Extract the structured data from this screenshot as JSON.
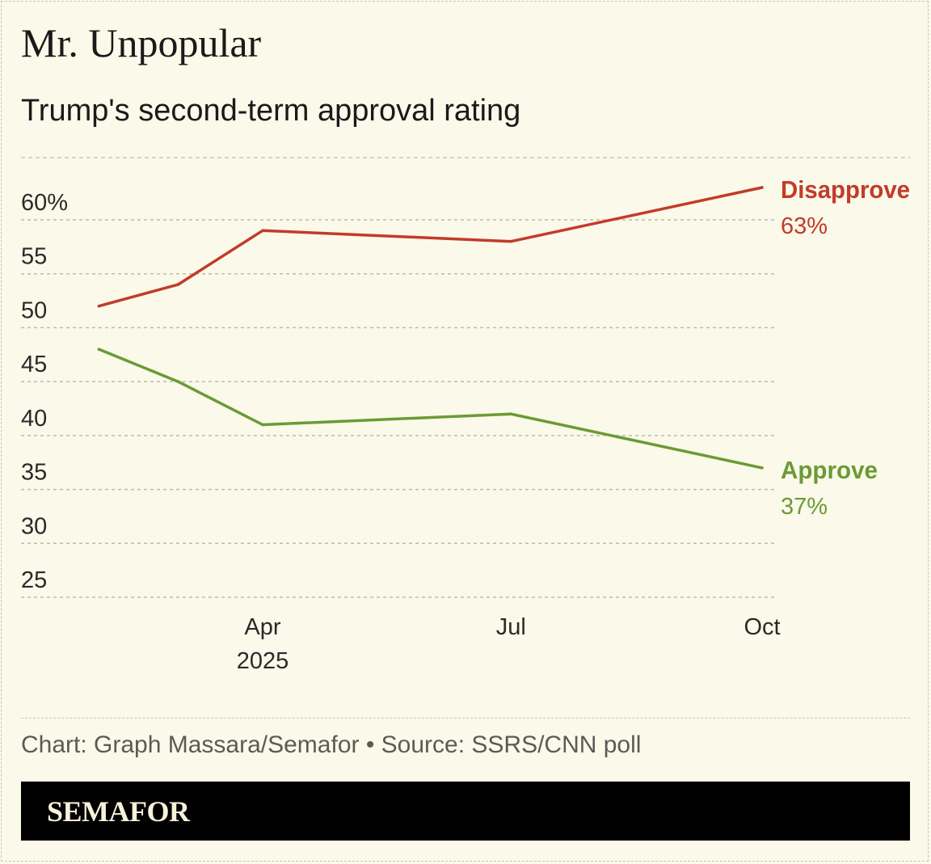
{
  "header": {
    "title": "Mr. Unpopular",
    "subtitle": "Trump's second-term approval rating"
  },
  "footer": {
    "credit": "Chart: Graph Massara/Semafor • Source: SSRS/CNN poll",
    "logo": "SEMAFOR"
  },
  "chart_data": {
    "type": "line",
    "title": "Mr. Unpopular",
    "subtitle": "Trump's second-term approval rating",
    "x": [
      "2025-01-31",
      "2025-03-01",
      "2025-04-01",
      "2025-07-01",
      "2025-10-01"
    ],
    "x_ticks": [
      {
        "date": "2025-04-01",
        "label": "Apr",
        "sublabel": "2025"
      },
      {
        "date": "2025-07-01",
        "label": "Jul",
        "sublabel": ""
      },
      {
        "date": "2025-10-01",
        "label": "Oct",
        "sublabel": ""
      }
    ],
    "y_ticks": [
      {
        "value": 60,
        "label": "60%"
      },
      {
        "value": 55,
        "label": "55"
      },
      {
        "value": 50,
        "label": "50"
      },
      {
        "value": 45,
        "label": "45"
      },
      {
        "value": 40,
        "label": "40"
      },
      {
        "value": 35,
        "label": "35"
      },
      {
        "value": 30,
        "label": "30"
      },
      {
        "value": 25,
        "label": "25"
      }
    ],
    "ylim": [
      25,
      60
    ],
    "grid": true,
    "series": [
      {
        "name": "Disapprove",
        "end_label": "63%",
        "color": "#c23b2a",
        "values": [
          52,
          54,
          59,
          58,
          63
        ]
      },
      {
        "name": "Approve",
        "end_label": "37%",
        "color": "#6b9a36",
        "values": [
          48,
          45,
          41,
          42,
          37
        ]
      }
    ]
  }
}
